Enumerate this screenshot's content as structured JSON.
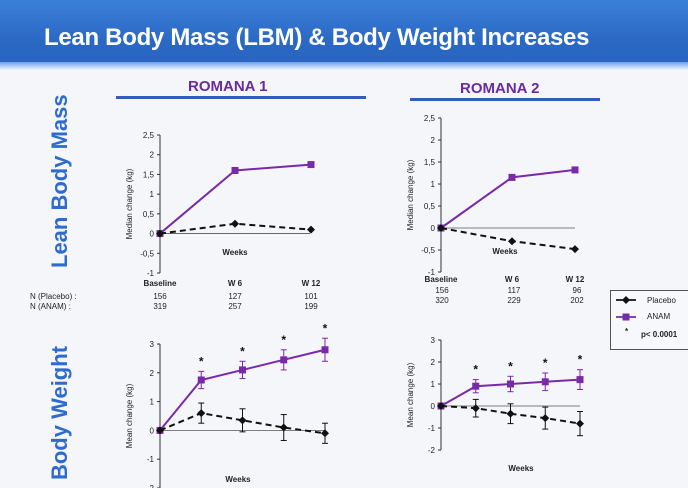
{
  "slide": {
    "title": "Lean Body Mass (LBM) & Body Weight Increases"
  },
  "row_labels": {
    "top": "Lean Body Mass",
    "bottom": "Body Weight"
  },
  "sections": [
    "ROMANA 1",
    "ROMANA 2"
  ],
  "n_table": {
    "placebo_label": "N (Placebo) :",
    "anam_label": "N (ANAM) :",
    "romana1": {
      "placebo": [
        "156",
        "127",
        "101"
      ],
      "anam": [
        "319",
        "257",
        "199"
      ]
    },
    "romana2": {
      "placebo": [
        "156",
        "117",
        "96"
      ],
      "anam": [
        "320",
        "229",
        "202"
      ]
    }
  },
  "legend": {
    "placebo": "Placebo",
    "anam": "ANAM",
    "sig": "p< 0.0001",
    "star": "*"
  },
  "colors": {
    "anam": "#7a2aa8",
    "placebo": "#111111",
    "title_bar": "#2a68c4",
    "accent": "#2e6bd0"
  },
  "chart_data": [
    {
      "id": "r1-lbm",
      "type": "line",
      "section": "ROMANA 1",
      "ylabel": "Median change (kg)",
      "xlabel": "Weeks",
      "ylim": [
        -1,
        2.5
      ],
      "yticks": [
        "2,5",
        "2",
        "1,5",
        "1",
        "0,5",
        "0",
        "-0,5",
        "-1"
      ],
      "ytick_values": [
        2.5,
        2,
        1.5,
        1,
        0.5,
        0,
        -0.5,
        -1
      ],
      "categories": [
        "Baseline",
        "W 6",
        "W 12"
      ],
      "series": [
        {
          "name": "ANAM",
          "values": [
            0,
            1.6,
            1.75
          ]
        },
        {
          "name": "Placebo",
          "values": [
            0,
            0.25,
            0.1
          ]
        }
      ]
    },
    {
      "id": "r2-lbm",
      "type": "line",
      "section": "ROMANA 2",
      "ylabel": "Median change (kg)",
      "xlabel": "Weeks",
      "ylim": [
        -1,
        2.5
      ],
      "yticks": [
        "2,5",
        "2",
        "1,5",
        "1",
        "0,5",
        "0",
        "-0,5",
        "-1"
      ],
      "ytick_values": [
        2.5,
        2,
        1.5,
        1,
        0.5,
        0,
        -0.5,
        -1
      ],
      "categories": [
        "Baseline",
        "W 6",
        "W 12"
      ],
      "series": [
        {
          "name": "ANAM",
          "values": [
            0,
            1.15,
            1.32
          ]
        },
        {
          "name": "Placebo",
          "values": [
            0,
            -0.3,
            -0.48
          ]
        }
      ]
    },
    {
      "id": "r1-bw",
      "type": "line",
      "section": "ROMANA 1",
      "ylabel": "Mean change (kg)",
      "xlabel": "Weeks",
      "ylim": [
        -2,
        3
      ],
      "yticks": [
        "3",
        "2",
        "1",
        "0",
        "-1",
        "-2"
      ],
      "ytick_values": [
        3,
        2,
        1,
        0,
        -1,
        -2
      ],
      "x": [
        0,
        3,
        6,
        9,
        12
      ],
      "series": [
        {
          "name": "ANAM",
          "values": [
            0,
            1.75,
            2.1,
            2.45,
            2.8
          ],
          "err": [
            0,
            0.3,
            0.3,
            0.35,
            0.4
          ]
        },
        {
          "name": "Placebo",
          "values": [
            0,
            0.6,
            0.35,
            0.1,
            -0.1
          ],
          "err": [
            0,
            0.35,
            0.4,
            0.45,
            0.35
          ]
        }
      ],
      "star_points": [
        3,
        6,
        9,
        12
      ]
    },
    {
      "id": "r2-bw",
      "type": "line",
      "section": "ROMANA 2",
      "ylabel": "Mean change (kg)",
      "xlabel": "Weeks",
      "ylim": [
        -2,
        3
      ],
      "yticks": [
        "3",
        "2",
        "1",
        "0",
        "-1",
        "-2"
      ],
      "ytick_values": [
        3,
        2,
        1,
        0,
        -1,
        -2
      ],
      "x": [
        0,
        3,
        6,
        9,
        12
      ],
      "series": [
        {
          "name": "ANAM",
          "values": [
            0,
            0.9,
            1.0,
            1.1,
            1.2
          ],
          "err": [
            0,
            0.3,
            0.35,
            0.4,
            0.45
          ]
        },
        {
          "name": "Placebo",
          "values": [
            0,
            -0.1,
            -0.35,
            -0.55,
            -0.8
          ],
          "err": [
            0,
            0.4,
            0.45,
            0.5,
            0.55
          ]
        }
      ],
      "star_points": [
        3,
        6,
        9,
        12
      ]
    }
  ]
}
